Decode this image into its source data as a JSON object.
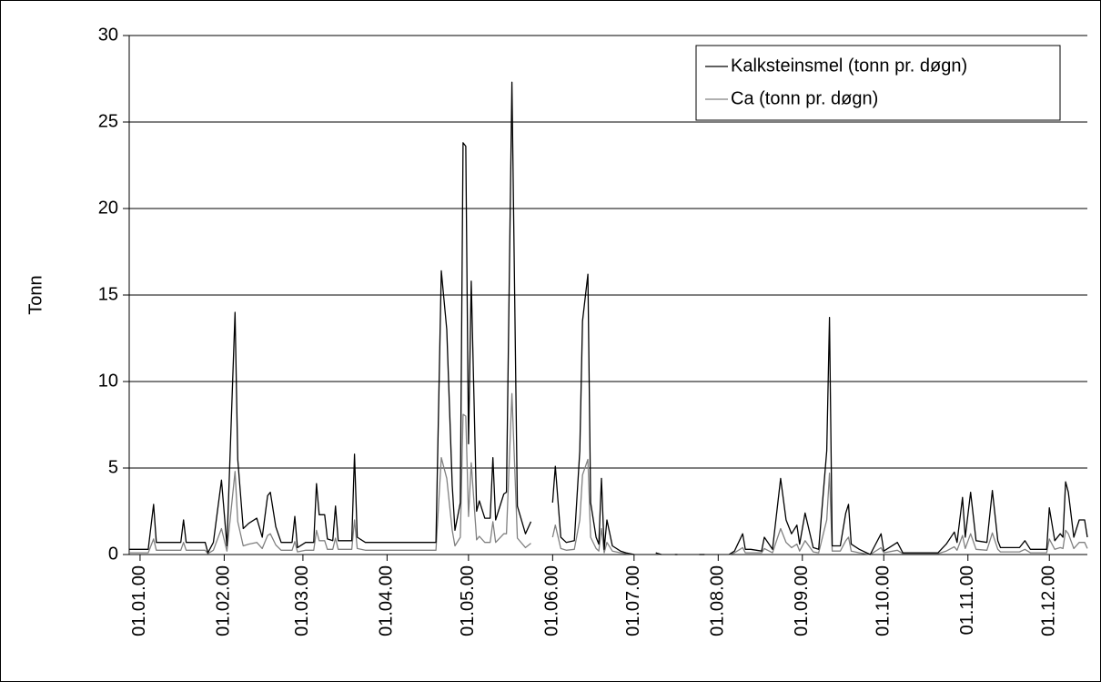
{
  "chart_data": {
    "type": "line",
    "y_label": "Tonn",
    "x": [
      "28.12.99",
      "04.01.00",
      "06.01.00",
      "07.01.00",
      "16.01.00",
      "17.01.00",
      "18.01.00",
      "25.01.00",
      "26.01.00",
      "28.01.00",
      "31.01.00",
      "02.02.00",
      "05.02.00",
      "06.02.00",
      "08.02.00",
      "10.02.00",
      "13.02.00",
      "15.02.00",
      "17.02.00",
      "18.02.00",
      "20.02.00",
      "22.02.00",
      "26.02.00",
      "27.02.00",
      "28.02.00",
      "02.03.00",
      "05.03.00",
      "06.03.00",
      "07.03.00",
      "09.03.00",
      "10.03.00",
      "12.03.00",
      "13.03.00",
      "14.03.00",
      "19.03.00",
      "20.03.00",
      "21.03.00",
      "24.03.00",
      "19.04.00",
      "21.04.00",
      "23.04.00",
      "25.04.00",
      "26.04.00",
      "28.04.00",
      "29.04.00",
      "30.04.00",
      "01.05.00",
      "02.05.00",
      "04.05.00",
      "05.05.00",
      "07.05.00",
      "09.05.00",
      "10.05.00",
      "11.05.00",
      "14.05.00",
      "15.05.00",
      "17.05.00",
      "19.05.00",
      "22.05.00",
      "24.05.00",
      "28.05.00",
      "01.06.00",
      "02.06.00",
      "04.06.00",
      "06.06.00",
      "09.06.00",
      "11.06.00",
      "12.06.00",
      "14.06.00",
      "15.06.00",
      "17.06.00",
      "18.06.00",
      "19.06.00",
      "20.06.00",
      "21.06.00",
      "23.06.00",
      "26.06.00",
      "28.06.00",
      "01.07.00",
      "04.07.00",
      "09.07.00",
      "11.07.00",
      "14.07.00",
      "16.07.00",
      "17.07.00",
      "21.07.00",
      "25.07.00",
      "27.07.00",
      "31.07.00",
      "05.08.00",
      "07.08.00",
      "10.08.00",
      "11.08.00",
      "13.08.00",
      "17.08.00",
      "18.08.00",
      "21.08.00",
      "24.08.00",
      "26.08.00",
      "28.08.00",
      "30.08.00",
      "31.08.00",
      "02.09.00",
      "05.09.00",
      "07.09.00",
      "10.09.00",
      "11.09.00",
      "12.09.00",
      "15.09.00",
      "17.09.00",
      "18.09.00",
      "19.09.00",
      "22.09.00",
      "26.09.00",
      "30.09.00",
      "01.10.00",
      "06.10.00",
      "08.10.00",
      "21.10.00",
      "24.10.00",
      "27.10.00",
      "28.10.00",
      "30.10.00",
      "31.10.00",
      "02.11.00",
      "04.11.00",
      "08.11.00",
      "10.11.00",
      "12.11.00",
      "13.11.00",
      "20.11.00",
      "22.11.00",
      "24.11.00",
      "30.11.00",
      "01.12.00",
      "03.12.00",
      "05.12.00",
      "06.12.00",
      "07.12.00",
      "08.12.00",
      "10.12.00",
      "12.12.00",
      "14.12.00",
      "15.12.00"
    ],
    "series": [
      {
        "name": "Kalksteinsmel (tonn pr. døgn)",
        "color": "#000000",
        "values": [
          0.3,
          0.3,
          2.9,
          0.7,
          0.7,
          2.0,
          0.7,
          0.7,
          0.1,
          0.7,
          4.3,
          0.5,
          14.0,
          5.5,
          1.5,
          1.8,
          2.1,
          1.0,
          3.4,
          3.6,
          1.6,
          0.7,
          0.7,
          2.2,
          0.4,
          0.7,
          0.7,
          4.1,
          2.3,
          2.3,
          0.9,
          0.8,
          2.8,
          0.8,
          0.8,
          5.8,
          1.0,
          0.7,
          0.7,
          16.4,
          13.0,
          4.0,
          1.4,
          3.0,
          23.8,
          23.6,
          6.4,
          15.8,
          2.5,
          3.1,
          2.1,
          2.1,
          5.6,
          2.0,
          3.5,
          3.6,
          27.3,
          2.8,
          1.2,
          1.9,
          null,
          3.0,
          5.1,
          1.0,
          0.7,
          0.8,
          6.0,
          13.5,
          16.2,
          3.0,
          1.0,
          0.6,
          4.4,
          0.3,
          2.0,
          0.5,
          0.2,
          0.1,
          0,
          null,
          0.1,
          0,
          null,
          0,
          0,
          null,
          0,
          0,
          null,
          0,
          0.2,
          1.2,
          0.3,
          0.3,
          0.2,
          1.0,
          0.3,
          4.4,
          2.0,
          1.2,
          1.7,
          0.6,
          2.4,
          0.4,
          0.3,
          6.0,
          13.7,
          0.5,
          0.5,
          2.4,
          2.9,
          0.6,
          0.3,
          0,
          1.2,
          0.2,
          0.7,
          0.1,
          0.1,
          0.6,
          1.3,
          0.7,
          3.3,
          1.0,
          3.6,
          0.8,
          0.7,
          3.7,
          0.8,
          0.4,
          0.4,
          0.8,
          0.3,
          0.3,
          2.7,
          0.8,
          1.2,
          1.0,
          4.2,
          3.6,
          1.0,
          2.0,
          2.0,
          1.0
        ]
      },
      {
        "name": "Ca (tonn pr. døgn)",
        "color": "#808080",
        "values": [
          0.1,
          0.1,
          0.9,
          0.25,
          0.25,
          0.7,
          0.25,
          0.25,
          0.05,
          0.25,
          1.5,
          0.2,
          4.8,
          1.9,
          0.5,
          0.6,
          0.7,
          0.35,
          1.1,
          1.2,
          0.55,
          0.25,
          0.25,
          0.75,
          0.15,
          0.25,
          0.25,
          1.4,
          0.8,
          0.8,
          0.3,
          0.3,
          0.95,
          0.3,
          0.3,
          2.0,
          0.35,
          0.25,
          0.25,
          5.6,
          4.4,
          1.4,
          0.5,
          1.0,
          8.1,
          8.0,
          2.2,
          5.3,
          0.85,
          1.05,
          0.7,
          0.7,
          1.9,
          0.7,
          1.2,
          1.2,
          9.3,
          0.95,
          0.4,
          0.65,
          null,
          1.0,
          1.7,
          0.35,
          0.25,
          0.3,
          2.0,
          4.6,
          5.5,
          1.0,
          0.35,
          0.2,
          1.5,
          0.1,
          0.7,
          0.2,
          0.1,
          0.05,
          0,
          null,
          0.05,
          0,
          null,
          0,
          0,
          null,
          0,
          0,
          null,
          0,
          0.1,
          0.4,
          0.1,
          0.1,
          0.1,
          0.35,
          0.1,
          1.5,
          0.7,
          0.4,
          0.6,
          0.2,
          0.8,
          0.15,
          0.1,
          2.0,
          4.7,
          0.2,
          0.2,
          0.8,
          1.0,
          0.2,
          0.1,
          0,
          0.4,
          0.1,
          0.25,
          0.05,
          0.05,
          0.2,
          0.45,
          0.25,
          1.1,
          0.35,
          1.2,
          0.3,
          0.25,
          1.25,
          0.3,
          0.15,
          0.15,
          0.3,
          0.1,
          0.1,
          0.9,
          0.3,
          0.4,
          0.35,
          1.4,
          1.2,
          0.35,
          0.7,
          0.7,
          0.35
        ]
      }
    ],
    "xlim": [
      "28.12.99",
      "15.12.00"
    ],
    "xticks": [
      "01.01.00",
      "01.02.00",
      "01.03.00",
      "01.04.00",
      "01.05.00",
      "01.06.00",
      "01.07.00",
      "01.08.00",
      "01.09.00",
      "01.10.00",
      "01.11.00",
      "01.12.00"
    ],
    "ylim": [
      0,
      30
    ],
    "yticks": [
      0,
      5,
      10,
      15,
      20,
      25,
      30
    ],
    "grid": true,
    "legend": "upper right"
  }
}
